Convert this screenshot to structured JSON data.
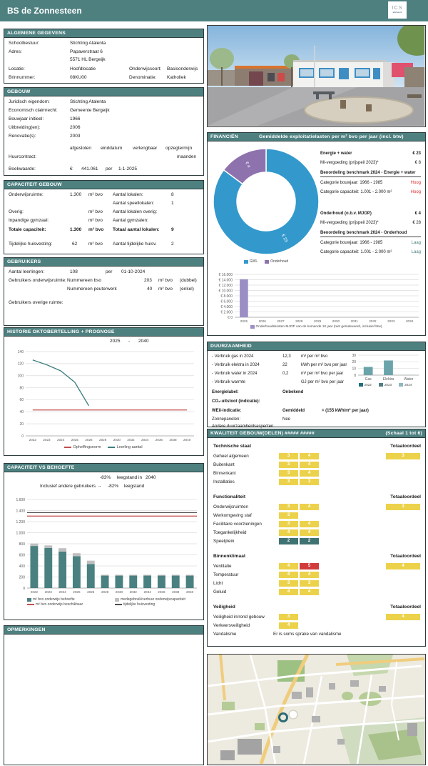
{
  "header": {
    "title": "BS de Zonnesteen",
    "logo": "ICS",
    "logo_sub": "adviseurs"
  },
  "colors": {
    "teal": "#4e8080",
    "cell_mid": "#ecd24a",
    "cell_bad": "#d23b3b",
    "cell_good": "#3f7272",
    "hoog": "#e02b2b",
    "laag": "#4e8080",
    "donut_blue": "#3399cc",
    "donut_purple": "#8e72ae",
    "mjop_purple": "#9b8ec4"
  },
  "algemeen": {
    "title": "ALGEMENE GEGEVENS",
    "schoolbestuur_label": "Schoolbestuur:",
    "schoolbestuur": "Stichting Atalenta",
    "adres_label": "Adres:",
    "adres1": "Papaverstraat 6",
    "adres2": "5571 HL Bergeijk",
    "locatie_label": "Locatie:",
    "locatie": "Hoofdlocatie",
    "onderwijssoort_label": "Onderwijssoort:",
    "onderwijssoort": "Basisonderwijs",
    "brin_label": "Brinnummer:",
    "brin": "08KU00",
    "denominatie_label": "Denominatie:",
    "denominatie": "Katholiek"
  },
  "gebouw": {
    "title": "GEBOUW",
    "rows": [
      {
        "label": "Juridisch eigendom:",
        "value": "Stichting Atalenta"
      },
      {
        "label": "Economisch claimrecht:",
        "value": "Gemeente Bergeijk"
      },
      {
        "label": "Bouwjaar initieel:",
        "value": "1966"
      },
      {
        "label": "Uitbreiding(en):",
        "value": "2006"
      },
      {
        "label": "Renovatie(s):",
        "value": "2003"
      }
    ],
    "contract_headers": [
      "afgesloten",
      "einddatum",
      "verlengbaar",
      "opzegtermijn"
    ],
    "huurcontract_label": "Huurcontract:",
    "maanden_label": "maanden",
    "boekwaarde_label": "Boekwaarde:",
    "euro": "€",
    "boekwaarde": "441.061",
    "per": "per",
    "boekwaarde_datum": "1-1-2025"
  },
  "capaciteit": {
    "title": "CAPACITEIT GEBOUW",
    "rows": [
      {
        "l": "Onderwijsruimte:",
        "v": "1.300",
        "u": "m² bvo",
        "rl": "Aantal lokalen:",
        "rv": "8"
      },
      {
        "l": "",
        "v": "",
        "u": "",
        "rl": "Aantal speellokalen:",
        "rv": "1"
      },
      {
        "l": "Overig:",
        "v": "",
        "u": "m² bvo",
        "rl": "Aantal lokalen overig:",
        "rv": ""
      },
      {
        "l": "Inpandige gymzaal:",
        "v": "",
        "u": "m² bvo",
        "rl": "Aantal gymzalen:",
        "rv": ""
      },
      {
        "l": "Totale capaciteit:",
        "v": "1.300",
        "u": "m² bvo",
        "rl": "Totaal aantal lokalen:",
        "rv": "9"
      },
      {
        "l": "Tijdelijke huisvesting:",
        "v": "62",
        "u": "m² bvo",
        "rl": "Aantal tijdelijke huisv.",
        "rv": "2"
      }
    ]
  },
  "gebruikers": {
    "title": "GEBRUIKERS",
    "leerlingen_label": "Aantal leerlingen:",
    "leerlingen": "108",
    "per": "per",
    "per_datum": "01-10-2024",
    "ruimte_label": "Gebruikers onderwijsruimte:",
    "lijst": [
      {
        "naam": "Nummereen bso",
        "opp": "203",
        "unit": "m² bvo",
        "type": "(dubbel)"
      },
      {
        "naam": "Nummereen peuterwerk",
        "opp": "40",
        "unit": "m² bvo",
        "type": "(enkel)"
      }
    ],
    "overig_label": "Gebruikers overige ruimte:"
  },
  "historie": {
    "title": "HISTORIE OKTOBERTELLING + PROGNOSE",
    "periode_from": "2025",
    "periode_dash": "-",
    "periode_to": "2040"
  },
  "capbehoefte": {
    "title": "CAPACITEIT VS BEHOEFTE",
    "line1_value": "-83%",
    "line1_rest": "leegstand in",
    "line1_year": "2040",
    "line2_prefix": "Inclusief andere gebruikers  →",
    "line2_value": "-82%",
    "line2_rest": "leegstand"
  },
  "opmerkingen": {
    "title": "OPMERKINGEN"
  },
  "financien": {
    "title": "FINANCIËN",
    "subtitle": "Gemiddelde exploitatielasten per m² bvo per jaar (incl. btw)",
    "energie_label": "Energie + water",
    "energie": "€ 23",
    "mi1_label": "MI-vergoeding (prijspeil 2023)*",
    "mi1": "€ 8",
    "bench1_title": "Beoordeling benchmark 2024 - Energie + water",
    "bench1_rows": [
      {
        "label": "Categorie bouwjaar: 1966 - 1985",
        "value": "Hoog",
        "status": "hoog"
      },
      {
        "label": "Categorie capaciteit: 1.001 - 2.000 m²",
        "value": "Hoog",
        "status": "hoog"
      }
    ],
    "onderhoud_label": "Onderhoud (o.b.v. MJOP)",
    "onderhoud": "€ 4",
    "mi2_label": "MI-vergoeding (prijspeil 2023)*",
    "mi2": "€ 28",
    "bench2_title": "Beoordeling benchmark 2024 - Onderhoud",
    "bench2_rows": [
      {
        "label": "Categorie bouwjaar: 1966 - 1985",
        "value": "Laag",
        "status": "laag"
      },
      {
        "label": "Categorie capaciteit: 1.001 - 2.000 m²",
        "value": "Laag",
        "status": "laag"
      }
    ]
  },
  "duurzaamheid": {
    "title": "DUURZAAMHEID",
    "rows": [
      {
        "label": "- Verbruik gas in 2024",
        "value": "12,3",
        "unit": "m³ per m² bvo"
      },
      {
        "label": "- Verbruik elektra in 2024",
        "value": "22",
        "unit": "kWh per m² bvo per jaar"
      },
      {
        "label": "- Verbruik water in 2024",
        "value": "0,2",
        "unit": "m³ per m² bvo per jaar"
      },
      {
        "label": "- Verbruik warmte",
        "value": "",
        "unit": "GJ per m² bvo per jaar"
      }
    ],
    "energielabel_label": "Energielabel:",
    "energielabel": "Onbekend",
    "co2_label": "CO₂-uitstoot (indicatie):",
    "weii_label": "WEii-indicatie:",
    "weii": "Gemiddeld",
    "weii_extra": "= (155 kWh/m² per jaar)",
    "zonnepanelen_label": "Zonnepanelen:",
    "zonnepanelen": "Nee",
    "andere_label": "Andere duurzaamheidsaspecten"
  },
  "kwaliteit": {
    "title": "KWALITEIT GEBOUW(DELEN)",
    "hashes": "#####  #####",
    "schaal": "(Schaal 1 tot 6)",
    "totaal_label": "Totaaloordeel",
    "groups": [
      {
        "name": "Technische staat",
        "totaal": 3,
        "rows": [
          {
            "label": "Geheel algemeen",
            "values": [
              3,
              4
            ]
          },
          {
            "label": "Buitenkant",
            "values": [
              3,
              4
            ]
          },
          {
            "label": "Binnenkant",
            "values": [
              3,
              4
            ]
          },
          {
            "label": "Installaties",
            "values": [
              3,
              3
            ]
          }
        ]
      },
      {
        "name": "Functionaliteit",
        "totaal": 3,
        "rows": [
          {
            "label": "Onderwijsruimten",
            "values": [
              3,
              4
            ]
          },
          {
            "label": "Werkomgeving staf",
            "values": [
              3
            ]
          },
          {
            "label": "Facilitaire voorzieningen",
            "values": [
              3,
              4
            ]
          },
          {
            "label": "Toegankelijkheid",
            "values": [
              4,
              4
            ]
          },
          {
            "label": "Speelplein",
            "values": [
              2,
              2
            ]
          }
        ]
      },
      {
        "name": "Binnenklimaat",
        "totaal": 4,
        "rows": [
          {
            "label": "Ventilatie",
            "values": [
              4,
              5
            ]
          },
          {
            "label": "Temperatuur",
            "values": [
              4,
              4
            ]
          },
          {
            "label": "Licht",
            "values": [
              3,
              3
            ]
          },
          {
            "label": "Geluid",
            "values": [
              4,
              4
            ]
          }
        ]
      },
      {
        "name": "Veiligheid",
        "totaal": 4,
        "rows": [
          {
            "label": "Veiligheid in/rond gebouw",
            "values": [
              3
            ]
          },
          {
            "label": "Verkeersveiligheid",
            "values": [
              4
            ]
          },
          {
            "label": "Vandalisme",
            "text": "Er is soms sprake van vandalisme"
          }
        ]
      }
    ]
  },
  "chart_data": [
    {
      "id": "historie",
      "type": "line",
      "title": "Historie oktobertelling + prognose",
      "categories": [
        "2022",
        "2023",
        "2024",
        "2025",
        "2026",
        "2028",
        "2030",
        "2032",
        "2034",
        "2036",
        "2038",
        "2040"
      ],
      "series": [
        {
          "name": "Opheffingsnorm",
          "color": "#c0504d",
          "values": [
            43,
            43,
            43,
            43,
            43,
            43,
            43,
            43,
            43,
            43,
            43,
            43
          ]
        },
        {
          "name": "Leerling aantal",
          "color": "#3f7e7e",
          "values": [
            126,
            118,
            108,
            89,
            50,
            null,
            null,
            null,
            null,
            null,
            null,
            null
          ]
        }
      ],
      "ylim": [
        0,
        140
      ],
      "ystep": 20,
      "grid": true,
      "legend_position": "bottom"
    },
    {
      "id": "capbehoefte",
      "type": "stacked-bar-lines",
      "title": "Capaciteit vs behoefte",
      "categories": [
        "2022",
        "2023",
        "2024",
        "2025",
        "2026",
        "2028",
        "2030",
        "2032",
        "2034",
        "2036",
        "2038",
        "2040"
      ],
      "bar_series": [
        {
          "name": "m² bvo onderwijs behoefte",
          "color": "#4a8080",
          "values": [
            760,
            725,
            660,
            575,
            435,
            225,
            225,
            225,
            225,
            225,
            225,
            225
          ]
        },
        {
          "name": "medegebruik/verhuur onderwijscapaciteit",
          "color": "#bfbfbf",
          "values": [
            45,
            45,
            60,
            55,
            60,
            15,
            15,
            15,
            15,
            15,
            15,
            15
          ]
        }
      ],
      "line_series": [
        {
          "name": "m² bvo onderwijs beschikbaar",
          "color": "#c0504d",
          "value": 1300
        },
        {
          "name": "tijdelijke huisvesting",
          "color": "#4d4d4d",
          "value": 1362
        }
      ],
      "ylim": [
        0,
        1600
      ],
      "ystep": 200,
      "yformat": "dot",
      "grid": true,
      "legend_position": "bottom"
    },
    {
      "id": "donut",
      "type": "donut",
      "title": "Gemiddelde exploitatielasten per m² bvo per jaar",
      "slices": [
        {
          "name": "GWL",
          "color": "#3399cc",
          "value": 23,
          "label": "€ 23"
        },
        {
          "name": "Onderhoud",
          "color": "#8e72ae",
          "value": 4,
          "label": "€ 4"
        }
      ],
      "legend_position": "bottom"
    },
    {
      "id": "mjop",
      "type": "bar",
      "title": "Onderhoudskosten MJOP",
      "categories": [
        "2025",
        "2026",
        "2027",
        "2028",
        "2029",
        "2030",
        "2031",
        "2032",
        "2033",
        "2034"
      ],
      "values": [
        14200,
        0,
        0,
        0,
        0,
        0,
        0,
        0,
        0,
        0
      ],
      "color": "#9b8ec4",
      "ml": 34,
      "ylim": [
        0,
        16000
      ],
      "ystep": 2000,
      "yformat": "euro",
      "grid": true,
      "legend": "Onderhoudskosten MJOP van de komende 10 jaar (niet geïndexeerd, inclusief btw)"
    },
    {
      "id": "verbruik",
      "type": "bar",
      "title": "Verbruik per jaar",
      "categories": [
        "Gas",
        "Elektra",
        "Water"
      ],
      "values": [
        12.3,
        22,
        0.2
      ],
      "color": "#6ba3ab",
      "ml": 13,
      "xfs": 5,
      "ylim": [
        0,
        30
      ],
      "ystep": 10,
      "grid": true,
      "legend_items": [
        {
          "name": "2022",
          "color": "#1f6f7a"
        },
        {
          "name": "2023",
          "color": "#4e8080"
        },
        {
          "name": "2024",
          "color": "#8db8bc"
        }
      ]
    }
  ]
}
